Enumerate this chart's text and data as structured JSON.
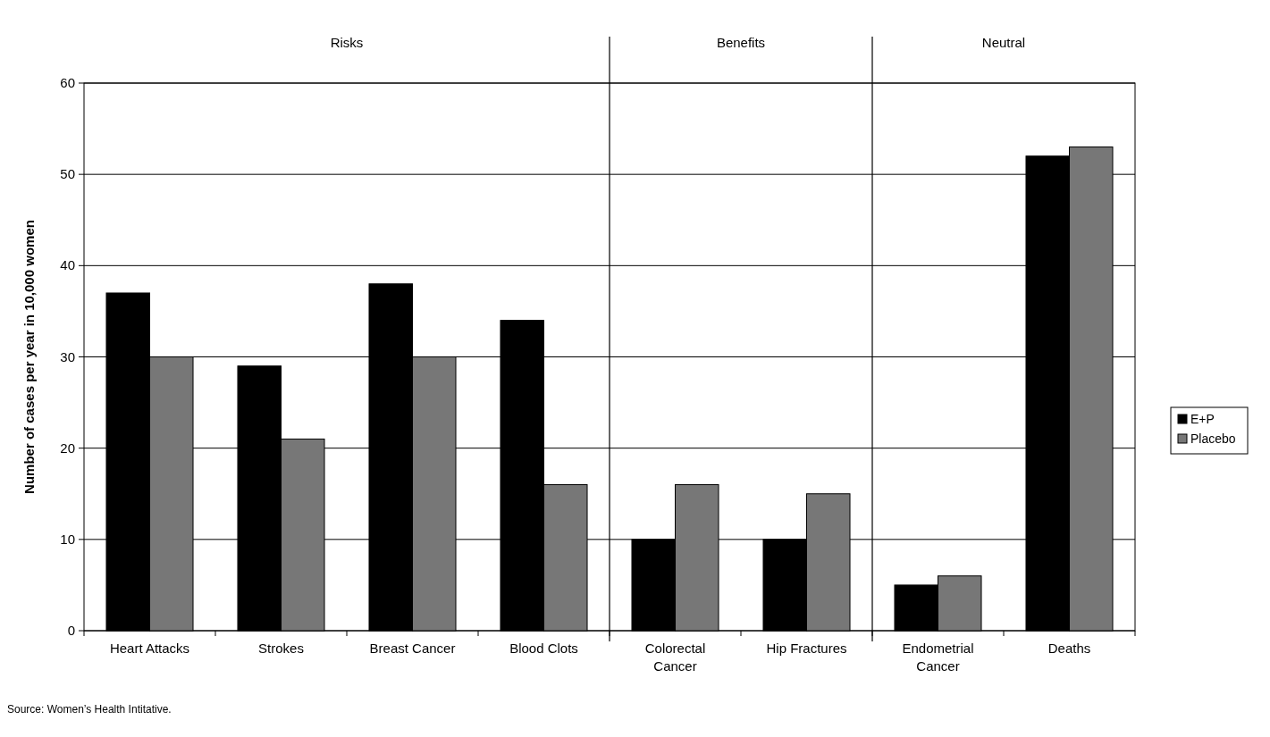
{
  "chart_data": {
    "type": "bar",
    "ylabel": "Number of cases per year in 10,000 women",
    "categories": [
      "Heart Attacks",
      "Strokes",
      "Breast Cancer",
      "Blood Clots",
      "Colorectal Cancer",
      "Hip Fractures",
      "Endometrial Cancer",
      "Deaths"
    ],
    "series": [
      {
        "name": "E+P",
        "color": "#000000",
        "values": [
          37,
          29,
          38,
          34,
          10,
          10,
          5,
          52
        ]
      },
      {
        "name": "Placebo",
        "color": "#777777",
        "values": [
          30,
          21,
          30,
          16,
          16,
          15,
          6,
          53
        ]
      }
    ],
    "ylim": [
      0,
      60
    ],
    "yticks": [
      0,
      10,
      20,
      30,
      40,
      50,
      60
    ],
    "grid": "y",
    "legend": "right",
    "annotations": [
      "Risks",
      "Benefits",
      "Neutral",
      "Source: Women’s Health Intitative."
    ]
  }
}
